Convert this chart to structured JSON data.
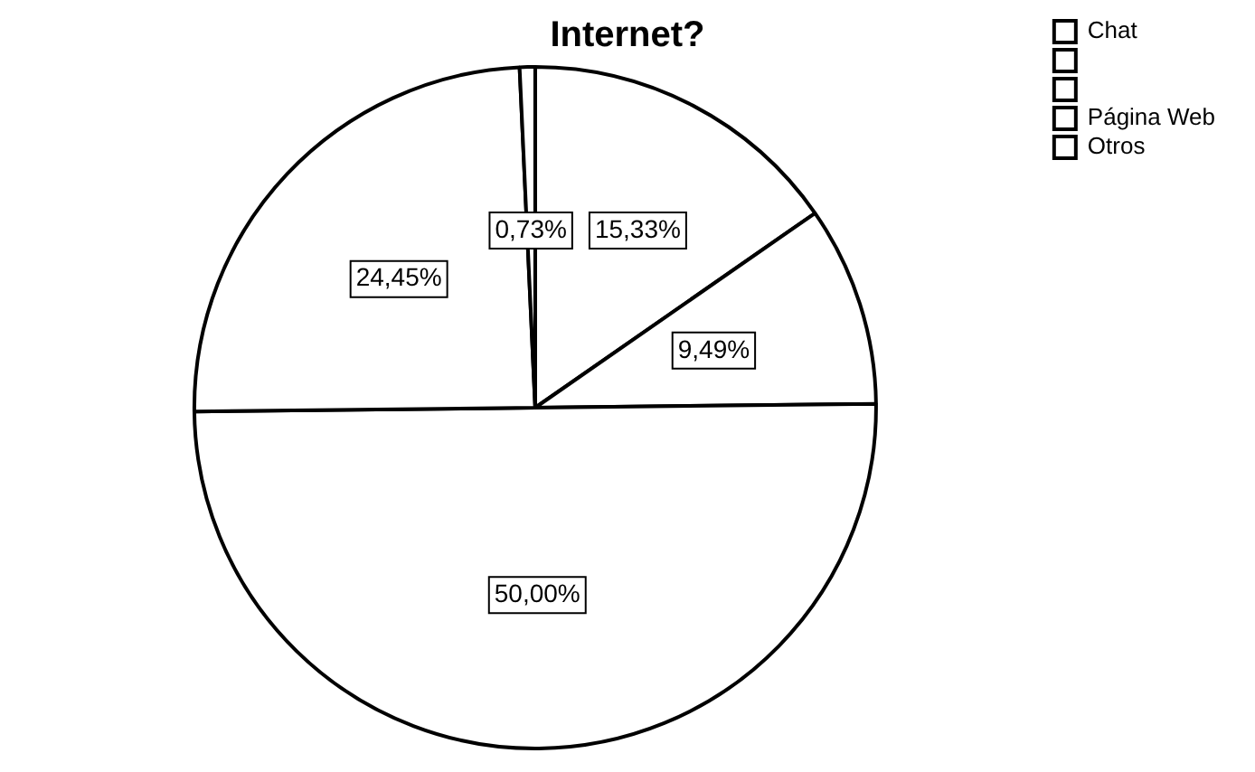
{
  "chart_data": {
    "type": "pie",
    "title": "Internet?",
    "categories": [
      "Chat",
      null,
      null,
      "Página Web",
      "Otros"
    ],
    "values": [
      15.33,
      9.49,
      50.0,
      24.45,
      0.73
    ],
    "colors": [
      "#ffffff",
      "#ffffff",
      "#ffffff",
      "#ffffff",
      "#ffffff"
    ],
    "value_labels": [
      "15,33%",
      "9,49%",
      "50,00%",
      "24,45%",
      "0,73%"
    ],
    "legend": "top right"
  }
}
